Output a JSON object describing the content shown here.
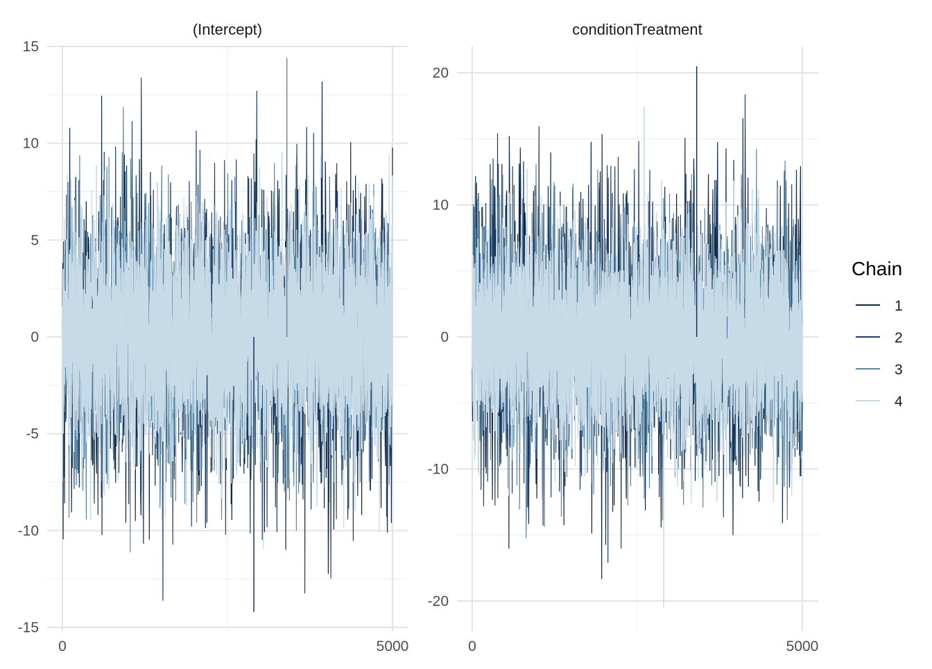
{
  "chart_data": [
    {
      "type": "line",
      "title": "(Intercept)",
      "xlabel": "",
      "ylabel": "",
      "xlim": [
        0,
        5000
      ],
      "ylim": [
        -15,
        15
      ],
      "x_ticks": [
        0,
        5000
      ],
      "x_tick_labels": [
        "0",
        "5000"
      ],
      "y_ticks": [
        -15,
        -10,
        -5,
        0,
        5,
        10,
        15
      ],
      "y_tick_labels": [
        "-15",
        "-10",
        "-5",
        "0",
        "5",
        "10",
        "15"
      ],
      "center": 0,
      "spread": 3.3,
      "max_value": 14.4,
      "min_value": -14.2,
      "grid": true,
      "series": [
        {
          "name": "1",
          "color": "#0f2747"
        },
        {
          "name": "2",
          "color": "#1f3f66"
        },
        {
          "name": "3",
          "color": "#5a88a3"
        },
        {
          "name": "4",
          "color": "#c6dae8"
        }
      ]
    },
    {
      "type": "line",
      "title": "conditionTreatment",
      "xlabel": "",
      "ylabel": "",
      "xlim": [
        0,
        5000
      ],
      "ylim": [
        -22,
        22
      ],
      "x_ticks": [
        0,
        5000
      ],
      "x_tick_labels": [
        "0",
        "5000"
      ],
      "y_ticks": [
        -20,
        -10,
        0,
        10,
        20
      ],
      "y_tick_labels": [
        "-20",
        "-10",
        "0",
        "10",
        "20"
      ],
      "center": 0,
      "spread": 4.6,
      "max_value": 20.5,
      "min_value": -20.5,
      "grid": true,
      "series": [
        {
          "name": "1",
          "color": "#0f2747"
        },
        {
          "name": "2",
          "color": "#1f3f66"
        },
        {
          "name": "3",
          "color": "#5a88a3"
        },
        {
          "name": "4",
          "color": "#c6dae8"
        }
      ]
    }
  ],
  "legend": {
    "title": "Chain",
    "placement": "right",
    "items": [
      {
        "label": "1",
        "color": "#0f2747"
      },
      {
        "label": "2",
        "color": "#1f3f66"
      },
      {
        "label": "3",
        "color": "#5a88a3"
      },
      {
        "label": "4",
        "color": "#c6dae8"
      }
    ]
  }
}
